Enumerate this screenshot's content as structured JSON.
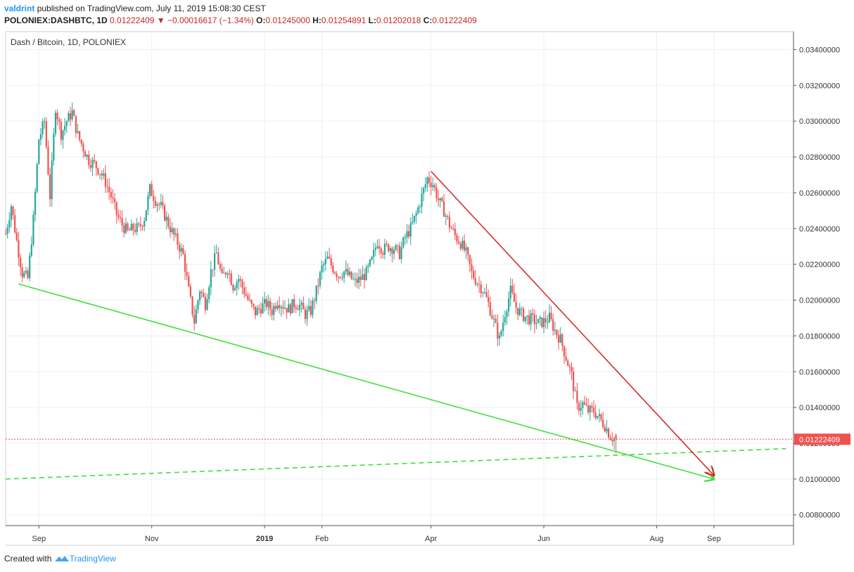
{
  "header": {
    "author": "valdrint",
    "published_text": "published on TradingView.com, July 11, 2019 15:08:30 CEST",
    "symbol": "POLONIEX:DASHBTC, 1D",
    "last": "0.01222409",
    "change": "−0.00016617 (−1.34%)",
    "open_label": "O:",
    "open": "0.01245000",
    "high_label": "H:",
    "high": "0.01254891",
    "low_label": "L:",
    "low": "0.01202018",
    "close_label": "C:",
    "close": "0.01222409"
  },
  "footer": {
    "created_with": "Created with",
    "brand": "TradingView"
  },
  "colors": {
    "up": "#26a69a",
    "down": "#ef5350",
    "support": "#3fe03a",
    "resistance": "#d32f2f",
    "price_line": "#ef5350",
    "grid": "#e9f0f7"
  },
  "chart_data": {
    "type": "candlestick",
    "title": "Dash / Bitcoin, 1D, POLONIEX",
    "ylim": [
      0.0074,
      0.035
    ],
    "y_ticks": [
      "0.03400000",
      "0.03200000",
      "0.03000000",
      "0.02800000",
      "0.02600000",
      "0.02400000",
      "0.02200000",
      "0.02000000",
      "0.01800000",
      "0.01600000",
      "0.01400000",
      "0.01200000",
      "0.01000000",
      "0.00800000"
    ],
    "x_ticks": [
      {
        "label": "Sep",
        "date": "2018-09-01"
      },
      {
        "label": "Nov",
        "date": "2018-11-01"
      },
      {
        "label": "2019",
        "date": "2019-01-01"
      },
      {
        "label": "Feb",
        "date": "2019-02-01"
      },
      {
        "label": "Apr",
        "date": "2019-04-01"
      },
      {
        "label": "Jun",
        "date": "2019-06-01"
      },
      {
        "label": "Aug",
        "date": "2019-08-01"
      },
      {
        "label": "Sep",
        "date": "2019-09-01"
      }
    ],
    "x_range": [
      "2018-08-14",
      "2019-10-14"
    ],
    "current_price": "0.01222409",
    "close_series": [
      [
        "2018-08-14",
        0.0237
      ],
      [
        "2018-08-17",
        0.0253
      ],
      [
        "2018-08-20",
        0.0233
      ],
      [
        "2018-08-23",
        0.0215
      ],
      [
        "2018-08-26",
        0.0212
      ],
      [
        "2018-08-29",
        0.0245
      ],
      [
        "2018-09-01",
        0.029
      ],
      [
        "2018-09-04",
        0.03
      ],
      [
        "2018-09-07",
        0.0258
      ],
      [
        "2018-09-10",
        0.0308
      ],
      [
        "2018-09-13",
        0.0293
      ],
      [
        "2018-09-16",
        0.03
      ],
      [
        "2018-09-19",
        0.0305
      ],
      [
        "2018-09-22",
        0.0292
      ],
      [
        "2018-09-25",
        0.0285
      ],
      [
        "2018-09-28",
        0.0278
      ],
      [
        "2018-10-01",
        0.0276
      ],
      [
        "2018-10-04",
        0.0272
      ],
      [
        "2018-10-07",
        0.0266
      ],
      [
        "2018-10-10",
        0.0258
      ],
      [
        "2018-10-13",
        0.0248
      ],
      [
        "2018-10-16",
        0.0242
      ],
      [
        "2018-10-19",
        0.0238
      ],
      [
        "2018-10-22",
        0.024
      ],
      [
        "2018-10-25",
        0.024
      ],
      [
        "2018-10-28",
        0.0246
      ],
      [
        "2018-10-31",
        0.0262
      ],
      [
        "2018-11-03",
        0.0256
      ],
      [
        "2018-11-06",
        0.0252
      ],
      [
        "2018-11-09",
        0.0245
      ],
      [
        "2018-11-12",
        0.0238
      ],
      [
        "2018-11-15",
        0.0232
      ],
      [
        "2018-11-18",
        0.0225
      ],
      [
        "2018-11-21",
        0.0205
      ],
      [
        "2018-11-24",
        0.0188
      ],
      [
        "2018-11-27",
        0.0206
      ],
      [
        "2018-11-30",
        0.0198
      ],
      [
        "2018-12-03",
        0.0216
      ],
      [
        "2018-12-06",
        0.0226
      ],
      [
        "2018-12-09",
        0.0212
      ],
      [
        "2018-12-12",
        0.0218
      ],
      [
        "2018-12-15",
        0.0208
      ],
      [
        "2018-12-18",
        0.0212
      ],
      [
        "2018-12-21",
        0.0205
      ],
      [
        "2018-12-24",
        0.0198
      ],
      [
        "2018-12-27",
        0.0193
      ],
      [
        "2018-12-30",
        0.0196
      ],
      [
        "2019-01-02",
        0.0198
      ],
      [
        "2019-01-05",
        0.0194
      ],
      [
        "2019-01-08",
        0.02
      ],
      [
        "2019-01-11",
        0.0197
      ],
      [
        "2019-01-14",
        0.0195
      ],
      [
        "2019-01-17",
        0.0198
      ],
      [
        "2019-01-20",
        0.0197
      ],
      [
        "2019-01-23",
        0.0192
      ],
      [
        "2019-01-26",
        0.0194
      ],
      [
        "2019-01-29",
        0.0205
      ],
      [
        "2019-02-01",
        0.0218
      ],
      [
        "2019-02-04",
        0.0223
      ],
      [
        "2019-02-07",
        0.0218
      ],
      [
        "2019-02-10",
        0.0214
      ],
      [
        "2019-02-13",
        0.0216
      ],
      [
        "2019-02-16",
        0.0213
      ],
      [
        "2019-02-19",
        0.021
      ],
      [
        "2019-02-22",
        0.0212
      ],
      [
        "2019-02-25",
        0.0215
      ],
      [
        "2019-02-28",
        0.0222
      ],
      [
        "2019-03-03",
        0.0233
      ],
      [
        "2019-03-06",
        0.0228
      ],
      [
        "2019-03-09",
        0.023
      ],
      [
        "2019-03-12",
        0.0229
      ],
      [
        "2019-03-15",
        0.0226
      ],
      [
        "2019-03-18",
        0.0235
      ],
      [
        "2019-03-21",
        0.024
      ],
      [
        "2019-03-24",
        0.0248
      ],
      [
        "2019-03-27",
        0.0258
      ],
      [
        "2019-03-30",
        0.0268
      ],
      [
        "2019-04-02",
        0.0265
      ],
      [
        "2019-04-05",
        0.0256
      ],
      [
        "2019-04-08",
        0.025
      ],
      [
        "2019-04-11",
        0.0242
      ],
      [
        "2019-04-14",
        0.0236
      ],
      [
        "2019-04-17",
        0.0232
      ],
      [
        "2019-04-20",
        0.0226
      ],
      [
        "2019-04-23",
        0.0215
      ],
      [
        "2019-04-26",
        0.021
      ],
      [
        "2019-04-29",
        0.0206
      ],
      [
        "2019-05-02",
        0.0198
      ],
      [
        "2019-05-05",
        0.0188
      ],
      [
        "2019-05-08",
        0.0178
      ],
      [
        "2019-05-11",
        0.0193
      ],
      [
        "2019-05-14",
        0.0205
      ],
      [
        "2019-05-17",
        0.0196
      ],
      [
        "2019-05-20",
        0.0192
      ],
      [
        "2019-05-23",
        0.019
      ],
      [
        "2019-05-26",
        0.0189
      ],
      [
        "2019-05-29",
        0.0187
      ],
      [
        "2019-06-01",
        0.0188
      ],
      [
        "2019-06-04",
        0.019
      ],
      [
        "2019-06-07",
        0.0183
      ],
      [
        "2019-06-10",
        0.0178
      ],
      [
        "2019-06-13",
        0.0168
      ],
      [
        "2019-06-16",
        0.0158
      ],
      [
        "2019-06-19",
        0.014
      ],
      [
        "2019-06-22",
        0.0142
      ],
      [
        "2019-06-25",
        0.0138
      ],
      [
        "2019-06-28",
        0.0138
      ],
      [
        "2019-07-01",
        0.0134
      ],
      [
        "2019-07-04",
        0.013
      ],
      [
        "2019-07-07",
        0.0124
      ],
      [
        "2019-07-10",
        0.0122
      ]
    ],
    "annotations": [
      {
        "kind": "support-trendline",
        "color": "#3fe03a",
        "from": [
          "2018-08-21",
          0.0209
        ],
        "to": [
          "2019-09-01",
          0.01
        ]
      },
      {
        "kind": "support-projection-dashed",
        "color": "#3fe03a",
        "from": [
          "2018-08-14",
          0.01
        ],
        "to": [
          "2019-10-10",
          0.0117
        ]
      },
      {
        "kind": "resistance-trendline",
        "color": "#d32f2f",
        "from": [
          "2019-04-01",
          0.0272
        ],
        "to": [
          "2019-09-01",
          0.0102
        ]
      }
    ]
  }
}
